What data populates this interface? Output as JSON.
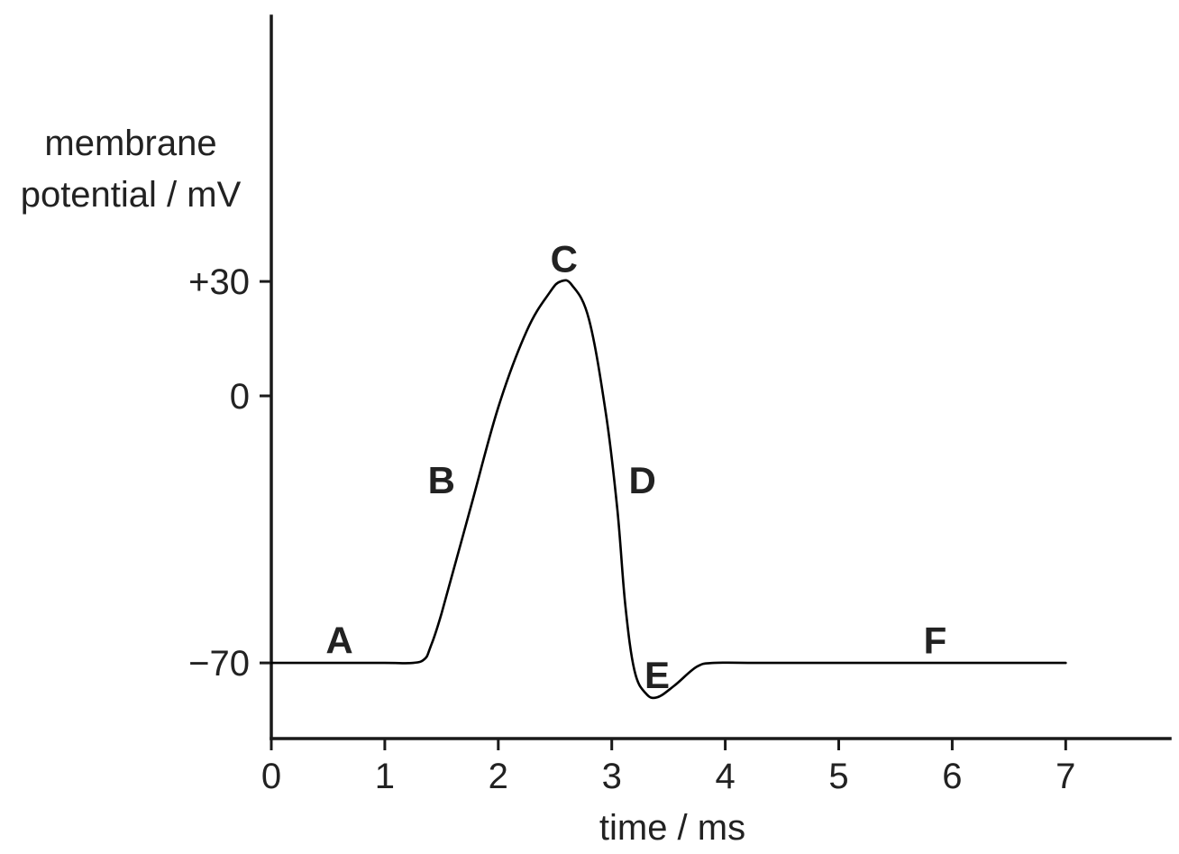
{
  "chart_data": {
    "type": "line",
    "xlabel": "time / ms",
    "ylabel_lines": [
      "membrane",
      "potential / mV"
    ],
    "x_ticks": [
      "0",
      "1",
      "2",
      "3",
      "4",
      "5",
      "6",
      "7"
    ],
    "y_ticks": [
      {
        "value": 30,
        "label": "+30"
      },
      {
        "value": 0,
        "label": "0"
      },
      {
        "value": -70,
        "label": "−70"
      }
    ],
    "xlim": [
      0,
      7.9
    ],
    "ylim": [
      -90,
      100
    ],
    "grid": false,
    "legend": "none",
    "series": [
      {
        "x": [
          0,
          0.5,
          1.0,
          1.25,
          1.35,
          1.4,
          1.5,
          1.75,
          2.0,
          2.25,
          2.45,
          2.55,
          2.65,
          2.8,
          2.95,
          3.05,
          3.12,
          3.2,
          3.3,
          3.4,
          3.55,
          3.75,
          3.9,
          4.2,
          5.0,
          6.0,
          7.0
        ],
        "y": [
          -70,
          -70,
          -70,
          -70,
          -69,
          -66,
          -57,
          -30,
          -3,
          17,
          27,
          30,
          29,
          20,
          -5,
          -30,
          -55,
          -72,
          -78,
          -79,
          -76,
          -71,
          -70,
          -70,
          -70,
          -70,
          -70
        ]
      }
    ],
    "point_labels": [
      {
        "text": "A",
        "x": 0.6,
        "y": -64
      },
      {
        "text": "B",
        "x": 1.5,
        "y": -22
      },
      {
        "text": "C",
        "x": 2.58,
        "y": 36
      },
      {
        "text": "D",
        "x": 3.27,
        "y": -22
      },
      {
        "text": "E",
        "x": 3.4,
        "y": -73
      },
      {
        "text": "F",
        "x": 5.85,
        "y": -64
      }
    ]
  }
}
